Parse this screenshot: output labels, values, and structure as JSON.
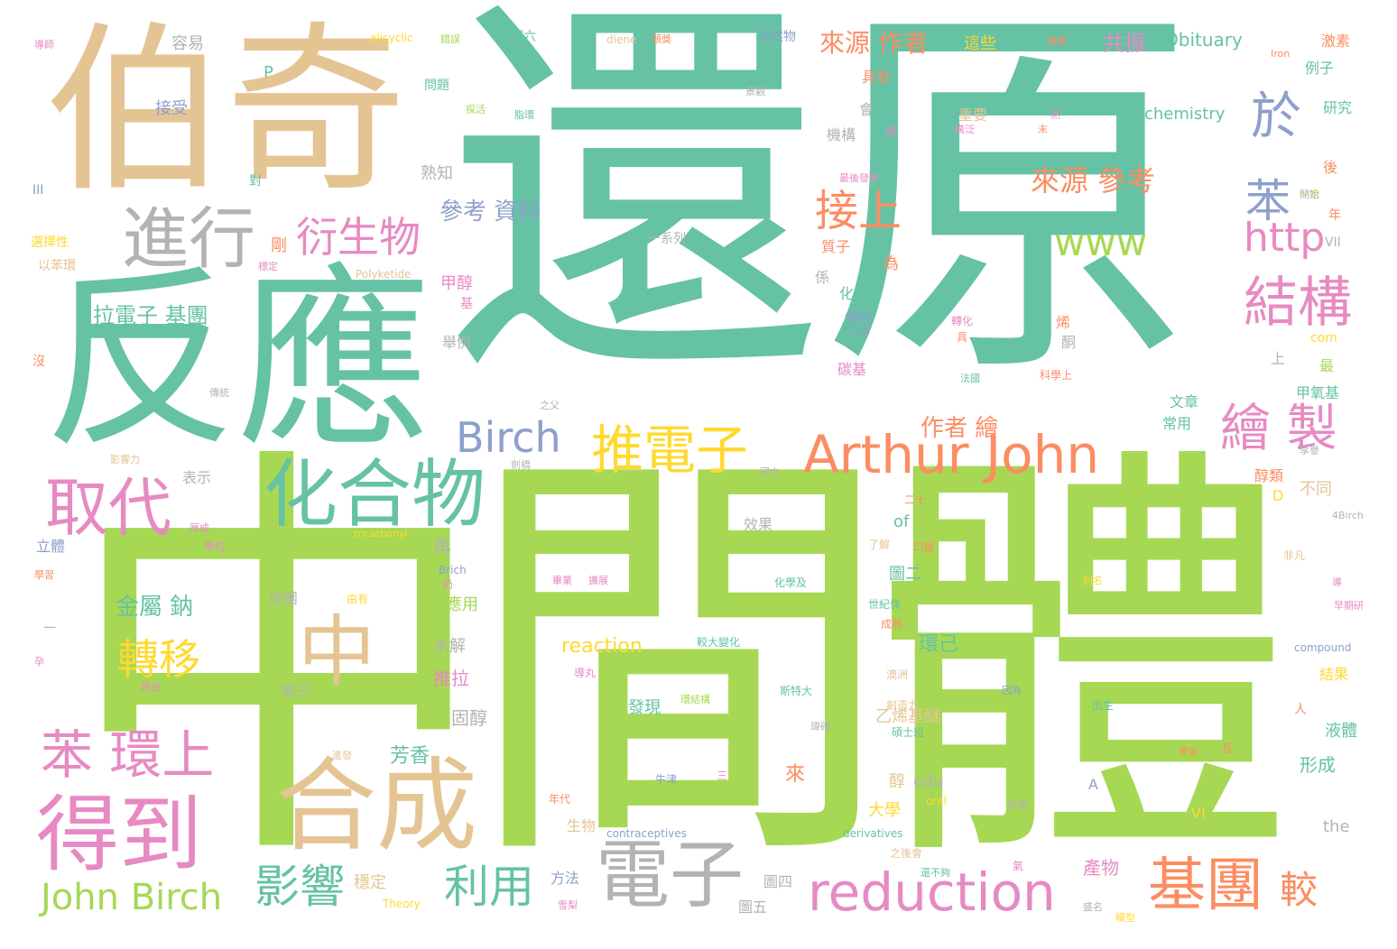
{
  "palette": {
    "teal": "#66c2a5",
    "orange": "#fc8d62",
    "blue": "#8da0cb",
    "pink": "#e78ac3",
    "green": "#a6d854",
    "yellow": "#ffd92f",
    "tan": "#e5c494",
    "gray": "#b3b3b3"
  },
  "words": [
    {
      "text": "還原",
      "color": "teal"
    },
    {
      "text": "中間體",
      "color": "green"
    },
    {
      "text": "反應",
      "color": "teal"
    },
    {
      "text": "伯奇",
      "color": "tan"
    },
    {
      "text": "合成",
      "color": "tan"
    },
    {
      "text": "化合物",
      "color": "teal"
    },
    {
      "text": "得到",
      "color": "pink"
    },
    {
      "text": "取代",
      "color": "pink"
    },
    {
      "text": "進行",
      "color": "gray"
    },
    {
      "text": "電子",
      "color": "gray"
    },
    {
      "text": "Arthur John",
      "color": "orange"
    },
    {
      "text": "reduction",
      "color": "pink"
    },
    {
      "text": "推電子",
      "color": "yellow"
    },
    {
      "text": "結構",
      "color": "pink"
    },
    {
      "text": "繪 製",
      "color": "pink"
    },
    {
      "text": "基團",
      "color": "orange"
    },
    {
      "text": "中",
      "color": "tan"
    },
    {
      "text": "苯 環上",
      "color": "pink"
    },
    {
      "text": "John Birch",
      "color": "green"
    },
    {
      "text": "Birch",
      "color": "blue"
    },
    {
      "text": "衍生物",
      "color": "pink"
    },
    {
      "text": "接上",
      "color": "orange"
    },
    {
      "text": "www",
      "color": "green"
    },
    {
      "text": "http",
      "color": "pink"
    },
    {
      "text": "於",
      "color": "blue"
    },
    {
      "text": "苯",
      "color": "blue"
    },
    {
      "text": "影響",
      "color": "teal"
    },
    {
      "text": "利用",
      "color": "teal"
    },
    {
      "text": "轉移",
      "color": "yellow"
    },
    {
      "text": "較",
      "color": "orange"
    },
    {
      "text": "來源 參考",
      "color": "orange"
    },
    {
      "text": "來源 作者",
      "color": "orange"
    },
    {
      "text": "參考 資料",
      "color": "blue"
    },
    {
      "text": "拉電子 基團",
      "color": "teal"
    },
    {
      "text": "金屬 鈉",
      "color": "teal"
    },
    {
      "text": "作者 繪",
      "color": "orange"
    },
    {
      "text": "Obituary",
      "color": "teal"
    },
    {
      "text": "chemistry",
      "color": "teal"
    },
    {
      "text": "reaction",
      "color": "yellow"
    },
    {
      "text": "共振",
      "color": "pink"
    },
    {
      "text": "這些",
      "color": "yellow"
    },
    {
      "text": "容易",
      "color": "gray"
    },
    {
      "text": "接受",
      "color": "blue"
    },
    {
      "text": "熟知",
      "color": "gray"
    },
    {
      "text": "一系列",
      "color": "gray"
    },
    {
      "text": "剛",
      "color": "orange"
    },
    {
      "text": "甲醇",
      "color": "pink"
    },
    {
      "text": "舉例",
      "color": "gray"
    },
    {
      "text": "Polyketide",
      "color": "tan"
    },
    {
      "text": "環己",
      "color": "teal"
    },
    {
      "text": "水解",
      "color": "gray"
    },
    {
      "text": "推拉",
      "color": "pink"
    },
    {
      "text": "圖三",
      "color": "gray"
    },
    {
      "text": "固醇",
      "color": "gray"
    },
    {
      "text": "芳香",
      "color": "teal"
    },
    {
      "text": "應用",
      "color": "green"
    },
    {
      "text": "再",
      "color": "gray"
    },
    {
      "text": "生物",
      "color": "tan"
    },
    {
      "text": "方法",
      "color": "blue"
    },
    {
      "text": "圖四",
      "color": "gray"
    },
    {
      "text": "圖五",
      "color": "gray"
    },
    {
      "text": "效果",
      "color": "gray"
    },
    {
      "text": "發現",
      "color": "teal"
    },
    {
      "text": "接團",
      "color": "gray"
    },
    {
      "text": "穩定",
      "color": "tan"
    },
    {
      "text": "表示",
      "color": "gray"
    },
    {
      "text": "立體",
      "color": "blue"
    },
    {
      "text": "of",
      "color": "teal"
    },
    {
      "text": "圖二",
      "color": "teal"
    },
    {
      "text": "乙烯基醚",
      "color": "tan"
    },
    {
      "text": "大學",
      "color": "yellow"
    },
    {
      "text": "醇",
      "color": "tan"
    },
    {
      "text": "edu",
      "color": "gray"
    },
    {
      "text": "來",
      "color": "orange"
    },
    {
      "text": "產物",
      "color": "pink"
    },
    {
      "text": "形成",
      "color": "teal"
    },
    {
      "text": "液體",
      "color": "teal"
    },
    {
      "text": "結果",
      "color": "yellow"
    },
    {
      "text": "不同",
      "color": "tan"
    },
    {
      "text": "醇類",
      "color": "orange"
    },
    {
      "text": "甲氧基",
      "color": "teal"
    },
    {
      "text": "最",
      "color": "green"
    },
    {
      "text": "上",
      "color": "gray"
    },
    {
      "text": "文章",
      "color": "teal"
    },
    {
      "text": "常用",
      "color": "teal"
    },
    {
      "text": "質子",
      "color": "orange"
    },
    {
      "text": "為",
      "color": "orange"
    },
    {
      "text": "化學",
      "color": "teal"
    },
    {
      "text": "催化",
      "color": "blue"
    },
    {
      "text": "係",
      "color": "gray"
    },
    {
      "text": "機構",
      "color": "gray"
    },
    {
      "text": "會",
      "color": "gray"
    },
    {
      "text": "具有",
      "color": "orange"
    },
    {
      "text": "重要",
      "color": "tan"
    },
    {
      "text": "研究",
      "color": "teal"
    },
    {
      "text": "例子",
      "color": "teal"
    },
    {
      "text": "後",
      "color": "orange"
    },
    {
      "text": "激素",
      "color": "orange"
    },
    {
      "text": "P",
      "color": "teal"
    },
    {
      "text": "E",
      "color": "teal"
    },
    {
      "text": "A",
      "color": "blue"
    },
    {
      "text": "D",
      "color": "yellow"
    },
    {
      "text": "VI",
      "color": "yellow"
    },
    {
      "text": "III",
      "color": "blue"
    },
    {
      "text": "VII",
      "color": "gray"
    },
    {
      "text": "the",
      "color": "gray"
    },
    {
      "text": "com",
      "color": "yellow"
    },
    {
      "text": "alicyclic",
      "color": "yellow"
    },
    {
      "text": "diene",
      "color": "tan"
    },
    {
      "text": "天然物",
      "color": "blue"
    },
    {
      "text": "圖六",
      "color": "teal"
    },
    {
      "text": "問題",
      "color": "teal"
    },
    {
      "text": "選擇性",
      "color": "yellow"
    },
    {
      "text": "以苯環",
      "color": "tan"
    },
    {
      "text": "對",
      "color": "teal"
    },
    {
      "text": "沒",
      "color": "orange"
    },
    {
      "text": "一",
      "color": "gray"
    },
    {
      "text": "年",
      "color": "orange"
    },
    {
      "text": "人",
      "color": "orange"
    },
    {
      "text": "compound",
      "color": "blue"
    },
    {
      "text": "contraceptives",
      "color": "blue"
    },
    {
      "text": "derivatives",
      "color": "teal"
    },
    {
      "text": "tricarbonyl",
      "color": "yellow"
    },
    {
      "text": "oral",
      "color": "yellow"
    },
    {
      "text": "Theory",
      "color": "yellow"
    },
    {
      "text": "Iron",
      "color": "orange"
    },
    {
      "text": "4Birch",
      "color": "gray"
    },
    {
      "text": "Brich",
      "color": "blue"
    },
    {
      "text": "仍",
      "color": "pink"
    },
    {
      "text": "學位",
      "color": "pink"
    },
    {
      "text": "由有",
      "color": "yellow"
    },
    {
      "text": "二十",
      "color": "orange"
    },
    {
      "text": "了解",
      "color": "tan"
    },
    {
      "text": "口服",
      "color": "orange"
    },
    {
      "text": "非凡",
      "color": "tan"
    },
    {
      "text": "世紀傑",
      "color": "teal"
    },
    {
      "text": "成熟",
      "color": "orange"
    },
    {
      "text": "澳洲",
      "color": "tan"
    },
    {
      "text": "創造力",
      "color": "tan"
    },
    {
      "text": "碩士班",
      "color": "teal"
    },
    {
      "text": "牛津",
      "color": "blue"
    },
    {
      "text": "三",
      "color": "pink"
    },
    {
      "text": "技術",
      "color": "gray"
    },
    {
      "text": "學家",
      "color": "orange"
    },
    {
      "text": "長",
      "color": "orange"
    },
    {
      "text": "出生",
      "color": "teal"
    },
    {
      "text": "氣",
      "color": "pink"
    },
    {
      "text": "年代",
      "color": "orange"
    },
    {
      "text": "之後會",
      "color": "tan"
    },
    {
      "text": "還不夠",
      "color": "teal"
    },
    {
      "text": "斯特大",
      "color": "teal"
    },
    {
      "text": "較大變化",
      "color": "teal"
    },
    {
      "text": "化學及",
      "color": "teal"
    },
    {
      "text": "環結構",
      "color": "green"
    },
    {
      "text": "導丸",
      "color": "pink"
    },
    {
      "text": "因為",
      "color": "blue"
    },
    {
      "text": "畢業",
      "color": "pink"
    },
    {
      "text": "擴展",
      "color": "pink"
    },
    {
      "text": "國立",
      "color": "gray"
    },
    {
      "text": "劍橋",
      "color": "gray"
    },
    {
      "text": "影響力",
      "color": "tan"
    },
    {
      "text": "厚成",
      "color": "pink"
    },
    {
      "text": "碳基",
      "color": "pink"
    },
    {
      "text": "二烯",
      "color": "blue"
    },
    {
      "text": "基",
      "color": "pink"
    },
    {
      "text": "烯",
      "color": "orange"
    },
    {
      "text": "酮",
      "color": "gray"
    },
    {
      "text": "具",
      "color": "orange"
    },
    {
      "text": "轉化",
      "color": "pink"
    },
    {
      "text": "科學上",
      "color": "orange"
    },
    {
      "text": "法國",
      "color": "teal"
    },
    {
      "text": "享譽",
      "color": "gray"
    },
    {
      "text": "之父",
      "color": "gray"
    },
    {
      "text": "最後發表",
      "color": "pink"
    },
    {
      "text": "廣泛",
      "color": "pink"
    },
    {
      "text": "鏈",
      "color": "pink"
    },
    {
      "text": "熱",
      "color": "pink"
    },
    {
      "text": "脂環",
      "color": "teal"
    },
    {
      "text": "探活",
      "color": "green"
    },
    {
      "text": "景觀",
      "color": "gray"
    },
    {
      "text": "規模",
      "color": "orange"
    },
    {
      "text": "末",
      "color": "orange"
    },
    {
      "text": "導師",
      "color": "pink"
    },
    {
      "text": "錯誤",
      "color": "green"
    },
    {
      "text": "頒獎",
      "color": "orange"
    },
    {
      "text": "標定",
      "color": "pink"
    },
    {
      "text": "一定",
      "color": "yellow"
    },
    {
      "text": "傳統",
      "color": "gray"
    },
    {
      "text": "學習",
      "color": "orange"
    },
    {
      "text": "孕",
      "color": "pink"
    },
    {
      "text": "將由",
      "color": "pink"
    },
    {
      "text": "進發",
      "color": "tan"
    },
    {
      "text": "盛名",
      "color": "gray"
    },
    {
      "text": "雪梨",
      "color": "pink"
    },
    {
      "text": "瑋確",
      "color": "gray"
    },
    {
      "text": "導",
      "color": "pink"
    },
    {
      "text": "別名",
      "color": "yellow"
    },
    {
      "text": "開始",
      "color": "gray"
    },
    {
      "text": "早期研",
      "color": "pink"
    },
    {
      "text": "模型",
      "color": "yellow"
    },
    {
      "text": "構造",
      "color": "orange"
    }
  ]
}
